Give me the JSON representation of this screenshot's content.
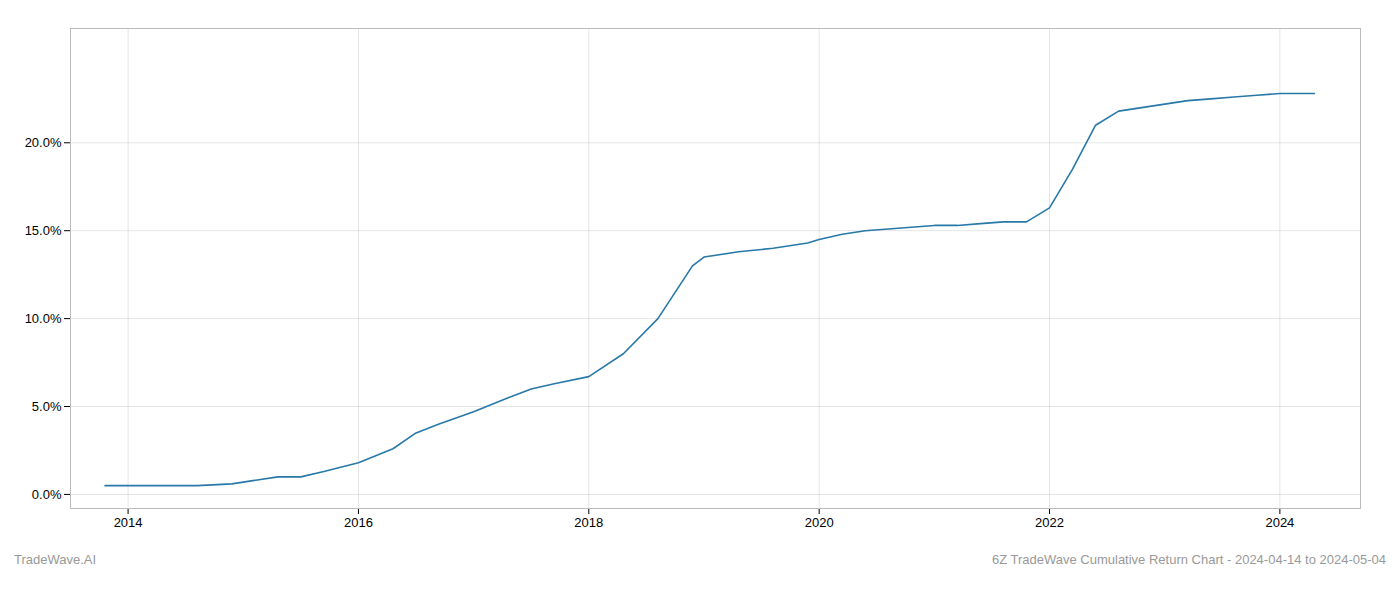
{
  "chart_data": {
    "type": "line",
    "annotations": [
      "TradeWave.AI",
      "6Z TradeWave Cumulative Return Chart - 2024-04-14 to 2024-05-04"
    ],
    "x": [
      2013.8,
      2014.0,
      2014.3,
      2014.6,
      2014.9,
      2015.0,
      2015.3,
      2015.5,
      2015.7,
      2016.0,
      2016.3,
      2016.5,
      2016.7,
      2017.0,
      2017.3,
      2017.5,
      2017.7,
      2018.0,
      2018.3,
      2018.6,
      2018.9,
      2019.0,
      2019.3,
      2019.6,
      2019.9,
      2020.0,
      2020.2,
      2020.4,
      2020.6,
      2020.8,
      2021.0,
      2021.2,
      2021.4,
      2021.6,
      2021.8,
      2022.0,
      2022.2,
      2022.4,
      2022.6,
      2022.8,
      2023.0,
      2023.2,
      2023.4,
      2023.6,
      2023.8,
      2024.0,
      2024.3
    ],
    "values": [
      0.005,
      0.005,
      0.005,
      0.005,
      0.006,
      0.007,
      0.01,
      0.01,
      0.013,
      0.018,
      0.026,
      0.035,
      0.04,
      0.047,
      0.055,
      0.06,
      0.063,
      0.067,
      0.08,
      0.1,
      0.13,
      0.135,
      0.138,
      0.14,
      0.143,
      0.145,
      0.148,
      0.15,
      0.151,
      0.152,
      0.153,
      0.153,
      0.154,
      0.155,
      0.155,
      0.163,
      0.185,
      0.21,
      0.218,
      0.22,
      0.222,
      0.224,
      0.225,
      0.226,
      0.227,
      0.228,
      0.228
    ],
    "color": "#2878a8",
    "xlim": [
      2013.5,
      2024.7
    ],
    "ylim": [
      -0.008,
      0.265
    ],
    "xticks": [
      2014,
      2016,
      2018,
      2020,
      2022,
      2024
    ],
    "yticks": [
      {
        "value": 0.0,
        "label": "0.0%"
      },
      {
        "value": 0.05,
        "label": "5.0%"
      },
      {
        "value": 0.1,
        "label": "10.0%"
      },
      {
        "value": 0.15,
        "label": "15.0%"
      },
      {
        "value": 0.2,
        "label": "20.0%"
      }
    ],
    "grid": true
  }
}
